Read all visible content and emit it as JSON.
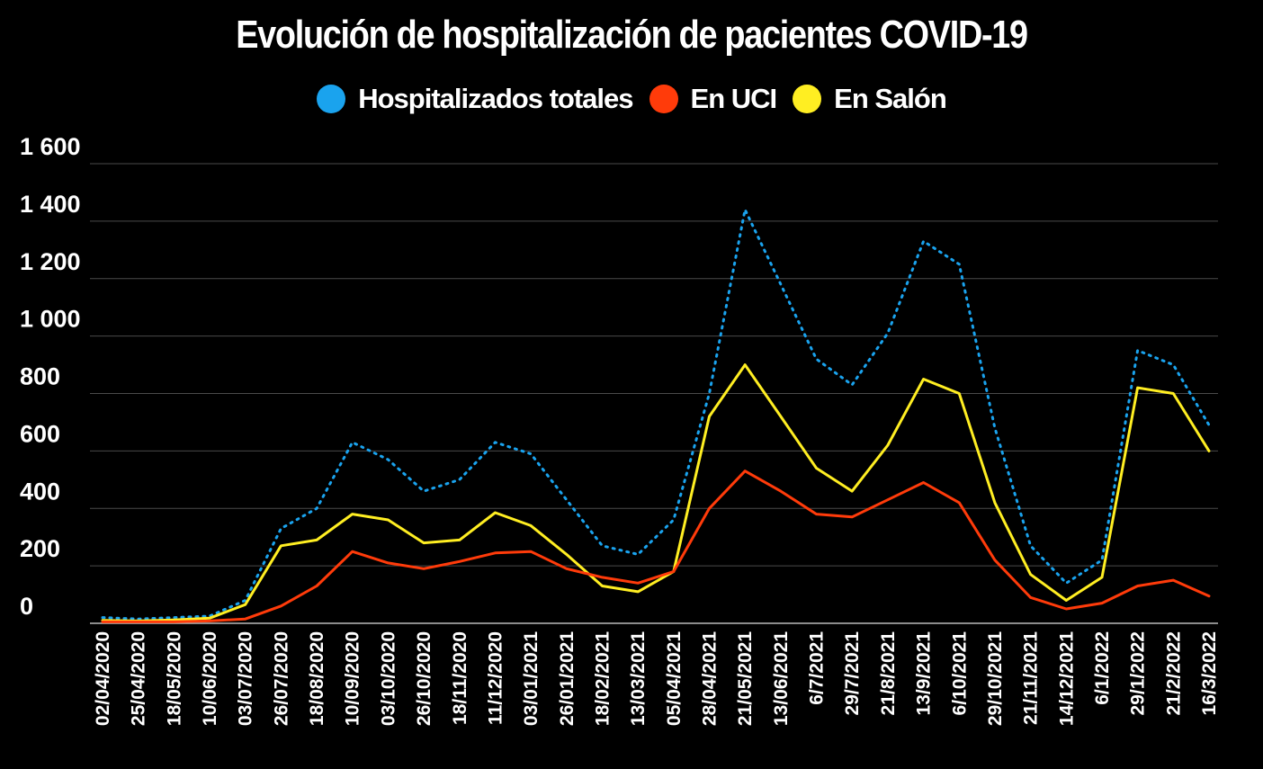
{
  "chart_data": {
    "type": "line",
    "title": "Evolución de hospitalización de pacientes COVID-19",
    "xlabel": "",
    "ylabel": "",
    "ylim": [
      0,
      1600
    ],
    "yticks": [
      0,
      200,
      400,
      600,
      800,
      1000,
      1200,
      1400,
      1600
    ],
    "ytick_labels": [
      "0",
      "200",
      "400",
      "600",
      "800",
      "1 000",
      "1 200",
      "1 400",
      "1 600"
    ],
    "grid": true,
    "legend_position": "top-center",
    "x": [
      "02/04/2020",
      "25/04/2020",
      "18/05/2020",
      "10/06/2020",
      "03/07/2020",
      "26/07/2020",
      "18/08/2020",
      "10/09/2020",
      "03/10/2020",
      "26/10/2020",
      "18/11/2020",
      "11/12/2020",
      "03/01/2021",
      "26/01/2021",
      "18/02/2021",
      "13/03/2021",
      "05/04/2021",
      "28/04/2021",
      "21/05/2021",
      "13/06/2021",
      "6/7/2021",
      "29/7/2021",
      "21/8/2021",
      "13/9/2021",
      "6/10/2021",
      "29/10/2021",
      "21/11/2021",
      "14/12/2021",
      "6/1/2022",
      "29/1/2022",
      "21/2/2022",
      "16/3/2022"
    ],
    "series": [
      {
        "name": "Hospitalizados totales",
        "color": "#1aa3ee",
        "style": "dotted",
        "values": [
          20,
          15,
          20,
          25,
          80,
          330,
          400,
          630,
          570,
          460,
          500,
          630,
          590,
          430,
          270,
          240,
          360,
          800,
          1440,
          1180,
          920,
          830,
          1010,
          1330,
          1250,
          680,
          270,
          140,
          220,
          950,
          900,
          690
        ]
      },
      {
        "name": "En UCI",
        "color": "#ff3b0a",
        "style": "solid",
        "values": [
          5,
          5,
          5,
          8,
          15,
          60,
          130,
          250,
          210,
          190,
          215,
          245,
          250,
          190,
          160,
          140,
          180,
          400,
          530,
          460,
          380,
          370,
          430,
          490,
          420,
          220,
          90,
          50,
          70,
          130,
          150,
          95
        ]
      },
      {
        "name": "En Salón",
        "color": "#ffee22",
        "style": "solid",
        "values": [
          10,
          8,
          12,
          18,
          65,
          270,
          290,
          380,
          360,
          280,
          290,
          385,
          340,
          240,
          130,
          110,
          180,
          720,
          900,
          720,
          540,
          460,
          620,
          850,
          800,
          420,
          170,
          80,
          160,
          820,
          800,
          600
        ]
      }
    ]
  }
}
